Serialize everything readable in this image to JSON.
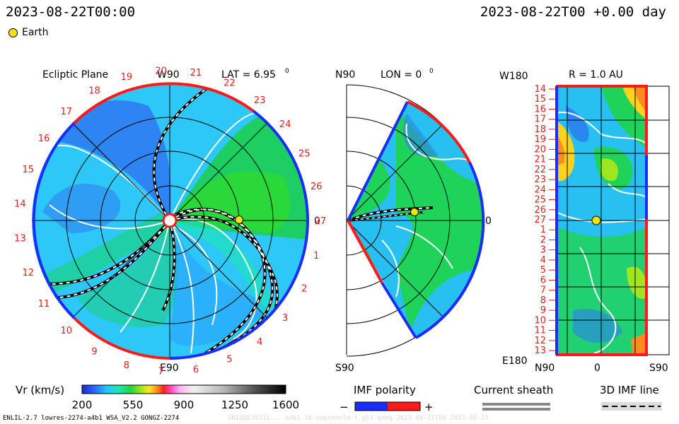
{
  "header": {
    "left_time": "2023-08-22T00:00",
    "right_time": "2023-08-22T00 +0.00 day",
    "legend_earth": "Earth"
  },
  "panels": {
    "ecliptic": {
      "title": "Ecliptic Plane",
      "top": "W90",
      "bottom": "E90",
      "right": "0",
      "lat_label": "LAT = 6.95",
      "lat_sup": "0"
    },
    "meridional": {
      "top": "N90",
      "bottom": "S90",
      "right": "0",
      "lon_label": "LON = 0",
      "lon_sup": "0"
    },
    "radial": {
      "title": "R = 1.0 AU",
      "top_left": "W180",
      "bottom_left": "E180",
      "x_left": "N90",
      "x_mid": "0",
      "x_right": "S90"
    }
  },
  "colorbar": {
    "label": "Vr (km/s)",
    "ticks": [
      "200",
      "550",
      "900",
      "1250",
      "1600"
    ]
  },
  "imf": {
    "title": "IMF polarity",
    "minus": "−",
    "plus": "+"
  },
  "sheath": {
    "title": "Current sheath"
  },
  "imf3d": {
    "title": "3D IMF line"
  },
  "footer": {
    "left": "ENLIL-2.7 lowres-2274-a4b1 WSA_V2.2 GONGZ-2274",
    "right": "UNIQUE20231...-a4b1.16-noptnnnld-t.g53.gong-2023-08-22T00  2023-08-23"
  },
  "colors": {
    "earth": "#f2e600",
    "red": "#ff1a1a",
    "blue": "#1a2cff"
  },
  "chart_data": {
    "type": "heatmap",
    "title": "Vr (km/s)",
    "carrington_rotation_ticks_ecliptic": [
      "20",
      "21",
      "22",
      "23",
      "24",
      "25",
      "26",
      "27",
      "1",
      "2",
      "3",
      "4",
      "5",
      "6",
      "7",
      "8",
      "9",
      "10",
      "11",
      "12",
      "13",
      "14",
      "15",
      "16",
      "17",
      "18",
      "19"
    ],
    "carrington_rotation_ticks_radial": [
      "14",
      "15",
      "16",
      "17",
      "18",
      "19",
      "20",
      "21",
      "22",
      "23",
      "24",
      "25",
      "26",
      "27",
      "1",
      "2",
      "3",
      "4",
      "5",
      "6",
      "7",
      "8",
      "9",
      "10",
      "11",
      "12",
      "13"
    ],
    "colorbar_range": [
      200,
      1600
    ],
    "earth": {
      "lat_deg": 6.95,
      "lon_deg": 0,
      "r_au": 1.0
    }
  }
}
